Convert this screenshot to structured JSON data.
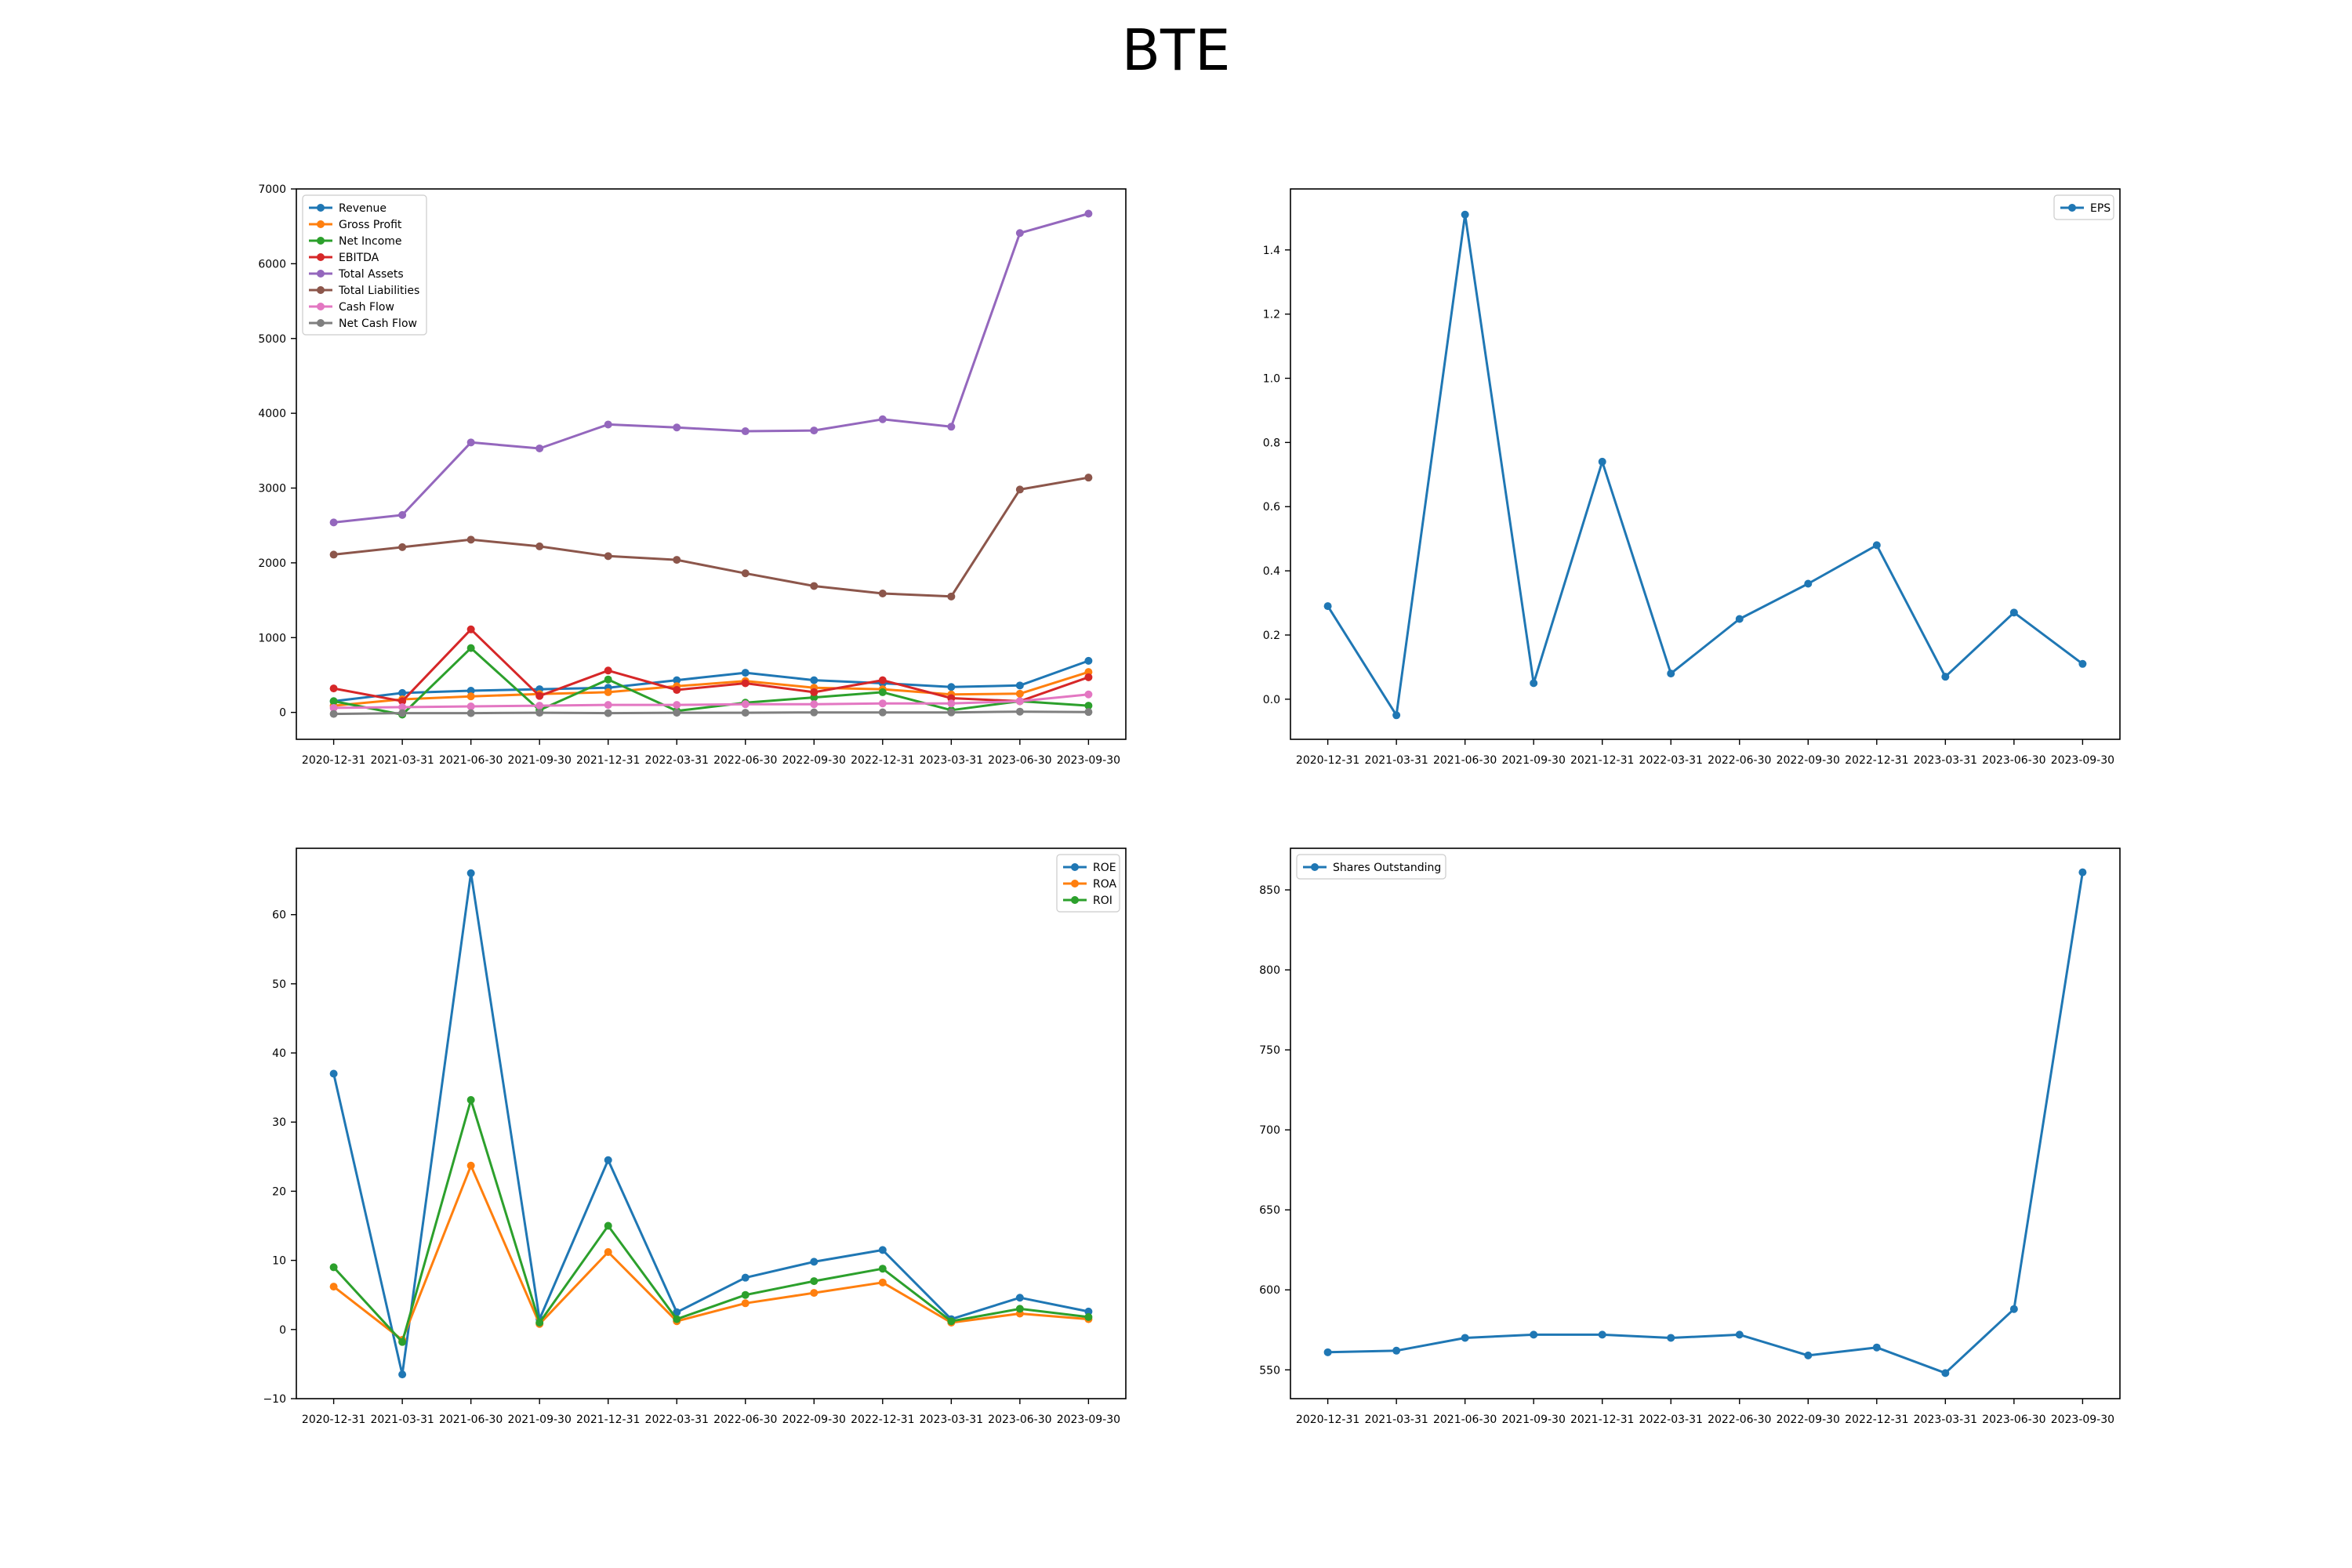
{
  "title": "BTE",
  "chart_data": [
    {
      "type": "line",
      "x": [
        "2020-12-31",
        "2021-03-31",
        "2021-06-30",
        "2021-09-30",
        "2021-12-31",
        "2022-03-31",
        "2022-06-30",
        "2022-09-30",
        "2022-12-31",
        "2023-03-31",
        "2023-06-30",
        "2023-09-30"
      ],
      "ylim": [
        -360,
        7000
      ],
      "yticks": [
        0,
        1000,
        2000,
        3000,
        4000,
        5000,
        6000,
        7000
      ],
      "legend": "upper left",
      "grid": false,
      "series": [
        {
          "name": "Revenue",
          "color": "#1f77b4",
          "values": [
            150,
            260,
            290,
            310,
            330,
            430,
            530,
            430,
            390,
            340,
            360,
            690
          ]
        },
        {
          "name": "Gross Profit",
          "color": "#ff7f0e",
          "values": [
            90,
            175,
            215,
            245,
            270,
            350,
            420,
            330,
            310,
            240,
            250,
            540
          ]
        },
        {
          "name": "Net Income",
          "color": "#2ca02c",
          "values": [
            150,
            -30,
            860,
            30,
            440,
            20,
            130,
            200,
            270,
            30,
            150,
            90
          ]
        },
        {
          "name": "EBITDA",
          "color": "#d62728",
          "values": [
            320,
            150,
            1110,
            220,
            560,
            300,
            390,
            270,
            430,
            190,
            150,
            470
          ]
        },
        {
          "name": "Total Assets",
          "color": "#9467bd",
          "values": [
            2540,
            2640,
            3610,
            3530,
            3850,
            3810,
            3760,
            3770,
            3920,
            3820,
            6410,
            6670
          ]
        },
        {
          "name": "Total Liabilities",
          "color": "#8c564b",
          "values": [
            2110,
            2210,
            2310,
            2220,
            2090,
            2040,
            1860,
            1690,
            1590,
            1550,
            2980,
            3140
          ]
        },
        {
          "name": "Cash Flow",
          "color": "#e377c2",
          "values": [
            60,
            70,
            80,
            90,
            100,
            100,
            110,
            110,
            120,
            120,
            150,
            240
          ]
        },
        {
          "name": "Net Cash Flow",
          "color": "#7f7f7f",
          "values": [
            -20,
            -10,
            -10,
            -5,
            -10,
            -5,
            -5,
            0,
            0,
            0,
            10,
            5
          ]
        }
      ]
    },
    {
      "type": "line",
      "x": [
        "2020-12-31",
        "2021-03-31",
        "2021-06-30",
        "2021-09-30",
        "2021-12-31",
        "2022-03-31",
        "2022-06-30",
        "2022-09-30",
        "2022-12-31",
        "2023-03-31",
        "2023-06-30",
        "2023-09-30"
      ],
      "ylim": [
        -0.125,
        1.59
      ],
      "yticks": [
        0.0,
        0.2,
        0.4,
        0.6,
        0.8,
        1.0,
        1.2,
        1.4
      ],
      "tick_labels": [
        "0.0",
        "0.2",
        "0.4",
        "0.6",
        "0.8",
        "1.0",
        "1.2",
        "1.4"
      ],
      "legend": "upper right",
      "grid": false,
      "series": [
        {
          "name": "EPS",
          "color": "#1f77b4",
          "values": [
            0.29,
            -0.05,
            1.51,
            0.05,
            0.74,
            0.08,
            0.25,
            0.36,
            0.48,
            0.07,
            0.27,
            0.11
          ]
        }
      ]
    },
    {
      "type": "line",
      "x": [
        "2020-12-31",
        "2021-03-31",
        "2021-06-30",
        "2021-09-30",
        "2021-12-31",
        "2022-03-31",
        "2022-06-30",
        "2022-09-30",
        "2022-12-31",
        "2023-03-31",
        "2023-06-30",
        "2023-09-30"
      ],
      "ylim": [
        -10,
        69.6
      ],
      "yticks": [
        -10,
        0,
        10,
        20,
        30,
        40,
        50,
        60
      ],
      "legend": "upper right",
      "grid": false,
      "series": [
        {
          "name": "ROE",
          "color": "#1f77b4",
          "values": [
            37,
            -6.5,
            66,
            1.5,
            24.5,
            2.5,
            7.5,
            9.8,
            11.5,
            1.5,
            4.6,
            2.6
          ]
        },
        {
          "name": "ROA",
          "color": "#ff7f0e",
          "values": [
            6.2,
            -1.5,
            23.7,
            0.8,
            11.2,
            1.2,
            3.8,
            5.3,
            6.8,
            1.0,
            2.3,
            1.5
          ]
        },
        {
          "name": "ROI",
          "color": "#2ca02c",
          "values": [
            9.0,
            -1.8,
            33.2,
            1.0,
            15.0,
            1.5,
            5.0,
            7.0,
            8.8,
            1.2,
            3.0,
            1.8
          ]
        }
      ]
    },
    {
      "type": "line",
      "x": [
        "2020-12-31",
        "2021-03-31",
        "2021-06-30",
        "2021-09-30",
        "2021-12-31",
        "2022-03-31",
        "2022-06-30",
        "2022-09-30",
        "2022-12-31",
        "2023-03-31",
        "2023-06-30",
        "2023-09-30"
      ],
      "ylim": [
        532,
        876
      ],
      "yticks": [
        550,
        600,
        650,
        700,
        750,
        800,
        850
      ],
      "legend": "upper left",
      "grid": false,
      "series": [
        {
          "name": "Shares Outstanding",
          "color": "#1f77b4",
          "values": [
            561,
            562,
            570,
            572,
            572,
            570,
            572,
            559,
            564,
            548,
            588,
            861
          ]
        }
      ]
    }
  ]
}
